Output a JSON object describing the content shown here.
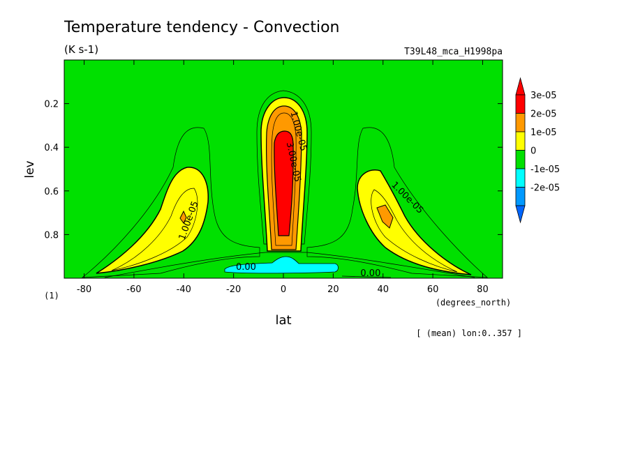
{
  "chart_data": {
    "type": "heatmap",
    "title": "Temperature tendency - Convection",
    "subtitle": "(K s-1)",
    "run_label": "T39L48_mca_H1998pa",
    "xlabel": "lat",
    "x_unit": "(degrees_north)",
    "ylabel": "lev",
    "y_unit": "(1)",
    "xlim": [
      -88,
      88
    ],
    "ylim": [
      0,
      1
    ],
    "y_inverted": true,
    "x_ticks": [
      -80,
      -60,
      -40,
      -20,
      0,
      20,
      40,
      60,
      80
    ],
    "x_tick_labels": [
      "-80",
      "-60",
      "-40",
      "-20",
      "0",
      "20",
      "40",
      "60",
      "80"
    ],
    "y_ticks": [
      0.2,
      0.4,
      0.6,
      0.8
    ],
    "y_tick_labels": [
      "0.2",
      "0.4",
      "0.6",
      "0.8"
    ],
    "footnote": "[ (mean) lon:0..357 ]",
    "colorbar": {
      "levels": [
        {
          "label": "3e-05",
          "value": 3e-05,
          "color": "#ff0000"
        },
        {
          "label": "2e-05",
          "value": 2e-05,
          "color": "#ff9900"
        },
        {
          "label": "1e-05",
          "value": 1e-05,
          "color": "#ffff00"
        },
        {
          "label": "0",
          "value": 0,
          "color": "#00e000"
        },
        {
          "label": "-1e-05",
          "value": -1e-05,
          "color": "#00ffff"
        },
        {
          "label": "-2e-05",
          "value": -2e-05,
          "color": "#0099ff"
        }
      ],
      "top_color": "#ff0000",
      "bottom_color": "#0066ff"
    },
    "background_color": "#00e000",
    "contour_labels": [
      {
        "text": "1.00e-05",
        "lat": 5,
        "lev": 0.33,
        "angle": 75
      },
      {
        "text": "3.00e-05",
        "lat": 3,
        "lev": 0.47,
        "angle": 78
      },
      {
        "text": "1.00e-05",
        "lat": -37,
        "lev": 0.74,
        "angle": -70
      },
      {
        "text": "1.00e-05",
        "lat": 49,
        "lev": 0.64,
        "angle": 45
      },
      {
        "text": "0.00",
        "lat": -15,
        "lev": 0.962,
        "angle": 0
      },
      {
        "text": "0.00",
        "lat": 35,
        "lev": 0.99,
        "angle": 0
      }
    ]
  }
}
